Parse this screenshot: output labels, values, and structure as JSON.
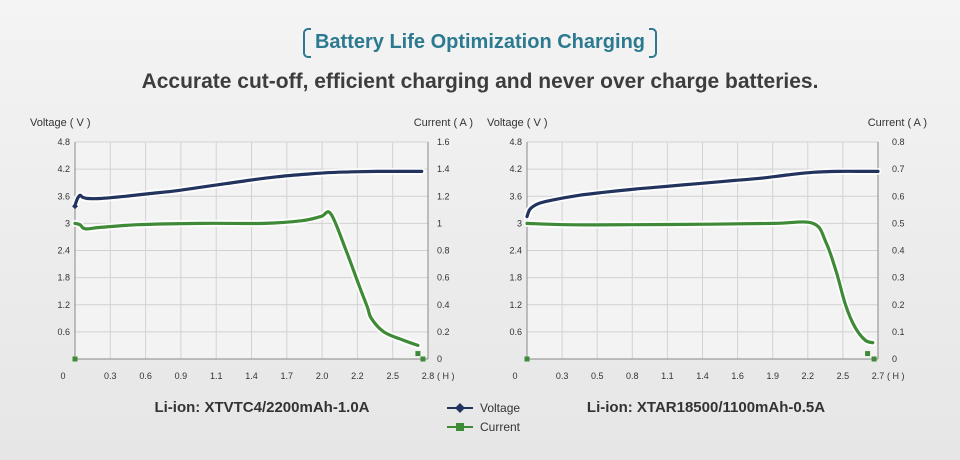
{
  "header": {
    "title": "Battery Life Optimization Charging",
    "subtitle": "Accurate cut-off, efficient charging and never over charge batteries."
  },
  "legend": [
    {
      "name": "Voltage",
      "color": "#22345e",
      "marker": "diamond"
    },
    {
      "name": "Current",
      "color": "#3f8a36",
      "marker": "square"
    }
  ],
  "chart_data": [
    {
      "type": "line",
      "caption": "Li-ion: XTVTC4/2200mAh-1.0A",
      "ylabel_left": "Voltage ( V )",
      "ylabel_right": "Current ( A )",
      "x_unit": "( H )",
      "x_ticks": [
        "0",
        "0.3",
        "0.6",
        "0.9",
        "1.1",
        "1.4",
        "1.7",
        "2.0",
        "2.2",
        "2.5",
        "2.8"
      ],
      "y_left_ticks": [
        "0.6",
        "1.2",
        "1.8",
        "2.4",
        "3",
        "3.6",
        "4.2",
        "4.8"
      ],
      "y_right_ticks": [
        "0",
        "0.2",
        "0.4",
        "0.6",
        "0.8",
        "1",
        "1.2",
        "1.4",
        "1.6"
      ],
      "xlim": [
        0,
        2.8
      ],
      "ylim_left": [
        0,
        4.8
      ],
      "ylim_right": [
        0,
        1.6
      ],
      "grid": true,
      "series": [
        {
          "name": "Voltage",
          "axis": "left",
          "color": "#22345e",
          "x": [
            0,
            0.02,
            0.04,
            0.06,
            0.1,
            0.2,
            0.4,
            0.6,
            0.8,
            1.0,
            1.2,
            1.4,
            1.6,
            1.8,
            2.0,
            2.2,
            2.4,
            2.6,
            2.75
          ],
          "y": [
            3.4,
            3.55,
            3.62,
            3.58,
            3.55,
            3.55,
            3.6,
            3.66,
            3.72,
            3.8,
            3.88,
            3.96,
            4.03,
            4.08,
            4.12,
            4.14,
            4.15,
            4.15,
            4.15
          ],
          "end_markers": [
            {
              "x": 0,
              "y": 3.38
            }
          ]
        },
        {
          "name": "Current",
          "axis": "right",
          "color": "#3f8a36",
          "x": [
            0,
            0.04,
            0.08,
            0.2,
            0.5,
            1.0,
            1.5,
            1.8,
            1.95,
            2.03,
            2.15,
            2.25,
            2.32,
            2.35,
            2.45,
            2.6,
            2.72
          ],
          "y": [
            1.0,
            0.99,
            0.96,
            0.97,
            0.99,
            1.0,
            1.0,
            1.02,
            1.05,
            1.07,
            0.8,
            0.55,
            0.38,
            0.3,
            0.2,
            0.14,
            0.1
          ],
          "end_markers": [
            {
              "x": 0,
              "y": 0
            },
            {
              "x": 2.72,
              "y": 0.04
            },
            {
              "x": 2.76,
              "y": 0
            }
          ]
        }
      ]
    },
    {
      "type": "line",
      "caption": "Li-ion: XTAR18500/1100mAh-0.5A",
      "ylabel_left": "Voltage ( V )",
      "ylabel_right": "Current ( A )",
      "x_unit": "( H )",
      "x_ticks": [
        "0",
        "0.3",
        "0.5",
        "0.8",
        "1.1",
        "1.4",
        "1.6",
        "1.9",
        "2.2",
        "2.5",
        "2.7"
      ],
      "y_left_ticks": [
        "0.6",
        "1.2",
        "1.8",
        "2.4",
        "3",
        "3.6",
        "4.2",
        "4.8"
      ],
      "y_right_ticks": [
        "0",
        "0.1",
        "0.2",
        "0.3",
        "0.4",
        "0.5",
        "0.6",
        "0.7",
        "0.8"
      ],
      "xlim": [
        0,
        2.7
      ],
      "ylim_left": [
        0,
        4.8
      ],
      "ylim_right": [
        0,
        0.8
      ],
      "grid": true,
      "series": [
        {
          "name": "Voltage",
          "axis": "left",
          "color": "#22345e",
          "x": [
            0,
            0.02,
            0.05,
            0.1,
            0.2,
            0.4,
            0.6,
            0.8,
            1.0,
            1.2,
            1.4,
            1.6,
            1.8,
            2.0,
            2.2,
            2.4,
            2.6,
            2.7
          ],
          "y": [
            3.15,
            3.3,
            3.38,
            3.45,
            3.52,
            3.62,
            3.69,
            3.75,
            3.8,
            3.85,
            3.9,
            3.95,
            4.0,
            4.07,
            4.13,
            4.15,
            4.15,
            4.15
          ],
          "end_markers": []
        },
        {
          "name": "Current",
          "axis": "right",
          "color": "#3f8a36",
          "x": [
            0,
            0.3,
            0.8,
            1.4,
            1.9,
            2.2,
            2.3,
            2.38,
            2.45,
            2.52,
            2.6,
            2.66
          ],
          "y": [
            0.5,
            0.495,
            0.495,
            0.497,
            0.5,
            0.5,
            0.43,
            0.32,
            0.2,
            0.12,
            0.07,
            0.06
          ],
          "end_markers": [
            {
              "x": 0,
              "y": 0
            },
            {
              "x": 2.62,
              "y": 0.02
            },
            {
              "x": 2.67,
              "y": 0
            }
          ]
        }
      ]
    }
  ]
}
